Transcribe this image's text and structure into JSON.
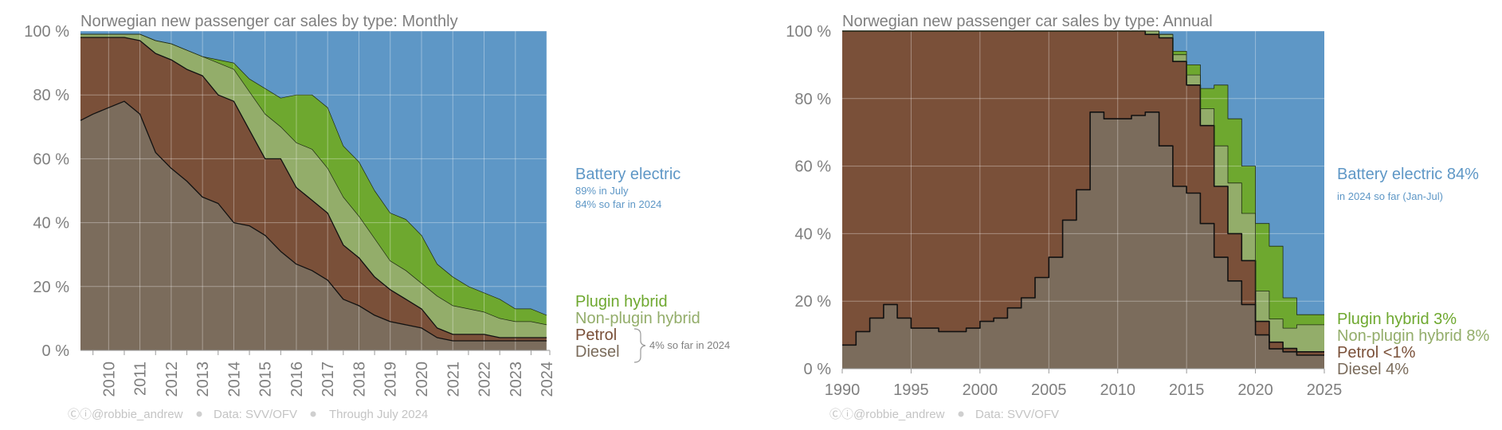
{
  "colors": {
    "battery": "#5e97c6",
    "plugin": "#6ea82f",
    "nonplugin": "#93ad6a",
    "petrol": "#7a5039",
    "diesel": "#7b6c5c",
    "grid": "#ffffff"
  },
  "chart_data": [
    {
      "type": "area",
      "title": "Norwegian new passenger car sales by type: Monthly",
      "xlim": [
        2009.6,
        2024.6
      ],
      "ylim": [
        0,
        100
      ],
      "y_ticks": [
        "0 %",
        "20 %",
        "40 %",
        "60 %",
        "80 %",
        "100 %"
      ],
      "x_ticks": [
        "2010",
        "2011",
        "2012",
        "2013",
        "2014",
        "2015",
        "2016",
        "2017",
        "2018",
        "2019",
        "2020",
        "2021",
        "2022",
        "2023",
        "2024"
      ],
      "x": [
        2009.6,
        2010.0,
        2010.5,
        2011.0,
        2011.5,
        2012.0,
        2012.5,
        2013.0,
        2013.5,
        2014.0,
        2014.5,
        2015.0,
        2015.5,
        2016.0,
        2016.5,
        2017.0,
        2017.5,
        2018.0,
        2018.5,
        2019.0,
        2019.5,
        2020.0,
        2020.5,
        2021.0,
        2021.5,
        2022.0,
        2022.5,
        2023.0,
        2023.5,
        2024.0,
        2024.5
      ],
      "series": [
        {
          "name": "Diesel",
          "values": [
            72,
            74,
            76,
            78,
            74,
            62,
            57,
            53,
            48,
            46,
            40,
            39,
            36,
            31,
            27,
            25,
            22,
            16,
            14,
            11,
            9,
            8,
            7,
            4,
            3,
            3,
            3,
            3,
            3,
            3,
            3
          ]
        },
        {
          "name": "Petrol",
          "values": [
            26,
            24,
            22,
            20,
            23,
            31,
            34,
            35,
            38,
            34,
            38,
            30,
            24,
            29,
            24,
            22,
            21,
            17,
            15,
            12,
            10,
            8,
            6,
            3,
            2,
            2,
            2,
            1,
            1,
            1,
            1
          ]
        },
        {
          "name": "Non-plugin hybrid",
          "values": [
            1,
            1,
            1,
            1,
            2,
            4,
            5,
            6,
            6,
            10,
            10,
            12,
            14,
            10,
            14,
            16,
            14,
            15,
            13,
            12,
            9,
            9,
            8,
            10,
            9,
            8,
            7,
            6,
            5,
            5,
            4
          ]
        },
        {
          "name": "Plugin hybrid",
          "values": [
            0,
            0,
            0,
            0,
            0,
            0,
            0,
            0,
            0,
            1,
            2,
            4,
            8,
            9,
            15,
            17,
            19,
            16,
            17,
            15,
            15,
            16,
            15,
            10,
            9,
            7,
            6,
            6,
            4,
            4,
            3
          ]
        },
        {
          "name": "Battery electric",
          "values": [
            1,
            1,
            1,
            1,
            1,
            3,
            4,
            6,
            8,
            9,
            10,
            15,
            18,
            21,
            20,
            20,
            24,
            36,
            41,
            50,
            57,
            59,
            64,
            73,
            77,
            80,
            82,
            84,
            87,
            87,
            89
          ]
        }
      ],
      "labels": {
        "battery": "Battery electric",
        "battery_note1": "89% in July",
        "battery_note2": "84% so far in 2024",
        "plugin": "Plugin hybrid",
        "nonplugin": "Non-plugin hybrid",
        "petrol": "Petrol",
        "diesel": "Diesel",
        "brace_note": "4% so far in 2024"
      },
      "footer": {
        "credit": "Ⓒⓘ@robbie_andrew",
        "data": "Data: SVV/OFV",
        "through": "Through July 2024"
      }
    },
    {
      "type": "area",
      "title": "Norwegian new passenger car sales by type: Annual",
      "xlim": [
        1990,
        2025
      ],
      "ylim": [
        0,
        100
      ],
      "y_ticks": [
        "0 %",
        "20 %",
        "40 %",
        "60 %",
        "80 %",
        "100 %"
      ],
      "x_ticks": [
        "1990",
        "1995",
        "2000",
        "2005",
        "2010",
        "2015",
        "2020",
        "2025"
      ],
      "years": [
        1990,
        1991,
        1992,
        1993,
        1994,
        1995,
        1996,
        1997,
        1998,
        1999,
        2000,
        2001,
        2002,
        2003,
        2004,
        2005,
        2006,
        2007,
        2008,
        2009,
        2010,
        2011,
        2012,
        2013,
        2014,
        2015,
        2016,
        2017,
        2018,
        2019,
        2020,
        2021,
        2022,
        2023,
        2024
      ],
      "series": [
        {
          "name": "Diesel",
          "values": [
            7,
            11,
            15,
            19,
            15,
            12,
            12,
            11,
            11,
            12,
            14,
            15,
            18,
            21,
            27,
            33,
            44,
            53,
            76,
            74,
            74,
            75,
            76,
            66,
            54,
            52,
            43,
            33,
            26,
            19,
            10,
            6,
            5,
            4,
            4
          ]
        },
        {
          "name": "Petrol",
          "values": [
            93,
            89,
            85,
            81,
            85,
            88,
            88,
            89,
            89,
            88,
            86,
            85,
            82,
            79,
            73,
            67,
            56,
            47,
            24,
            26,
            26,
            25,
            23,
            32,
            37,
            32,
            29,
            21,
            14,
            13,
            4,
            2,
            1,
            1,
            1
          ]
        },
        {
          "name": "Non-plugin hybrid",
          "values": [
            0,
            0,
            0,
            0,
            0,
            0,
            0,
            0,
            0,
            0,
            0,
            0,
            0,
            0,
            0,
            0,
            0,
            0,
            0,
            0,
            0,
            0,
            1,
            1,
            2,
            3,
            5,
            12,
            15,
            14,
            9,
            7,
            6,
            8,
            8
          ]
        },
        {
          "name": "Plugin hybrid",
          "values": [
            0,
            0,
            0,
            0,
            0,
            0,
            0,
            0,
            0,
            0,
            0,
            0,
            0,
            0,
            0,
            0,
            0,
            0,
            0,
            0,
            0,
            0,
            0,
            0,
            1,
            3,
            6,
            18,
            19,
            14,
            20,
            22,
            9,
            3,
            3
          ]
        },
        {
          "name": "Battery electric",
          "values": [
            0,
            0,
            0,
            0,
            0,
            0,
            0,
            0,
            0,
            0,
            0,
            0,
            0,
            0,
            0,
            0,
            0,
            0,
            0,
            0,
            0,
            0,
            0,
            1,
            6,
            10,
            17,
            16,
            26,
            40,
            57,
            65,
            79,
            84,
            84
          ]
        }
      ],
      "labels": {
        "battery": "Battery electric 84%",
        "battery_note": "in 2024 so far (Jan-Jul)",
        "plugin": "Plugin hybrid 3%",
        "nonplugin": "Non-plugin hybrid 8%",
        "petrol": "Petrol <1%",
        "diesel": "Diesel 4%"
      },
      "footer": {
        "credit": "Ⓒⓘ@robbie_andrew",
        "data": "Data: SVV/OFV"
      }
    }
  ]
}
